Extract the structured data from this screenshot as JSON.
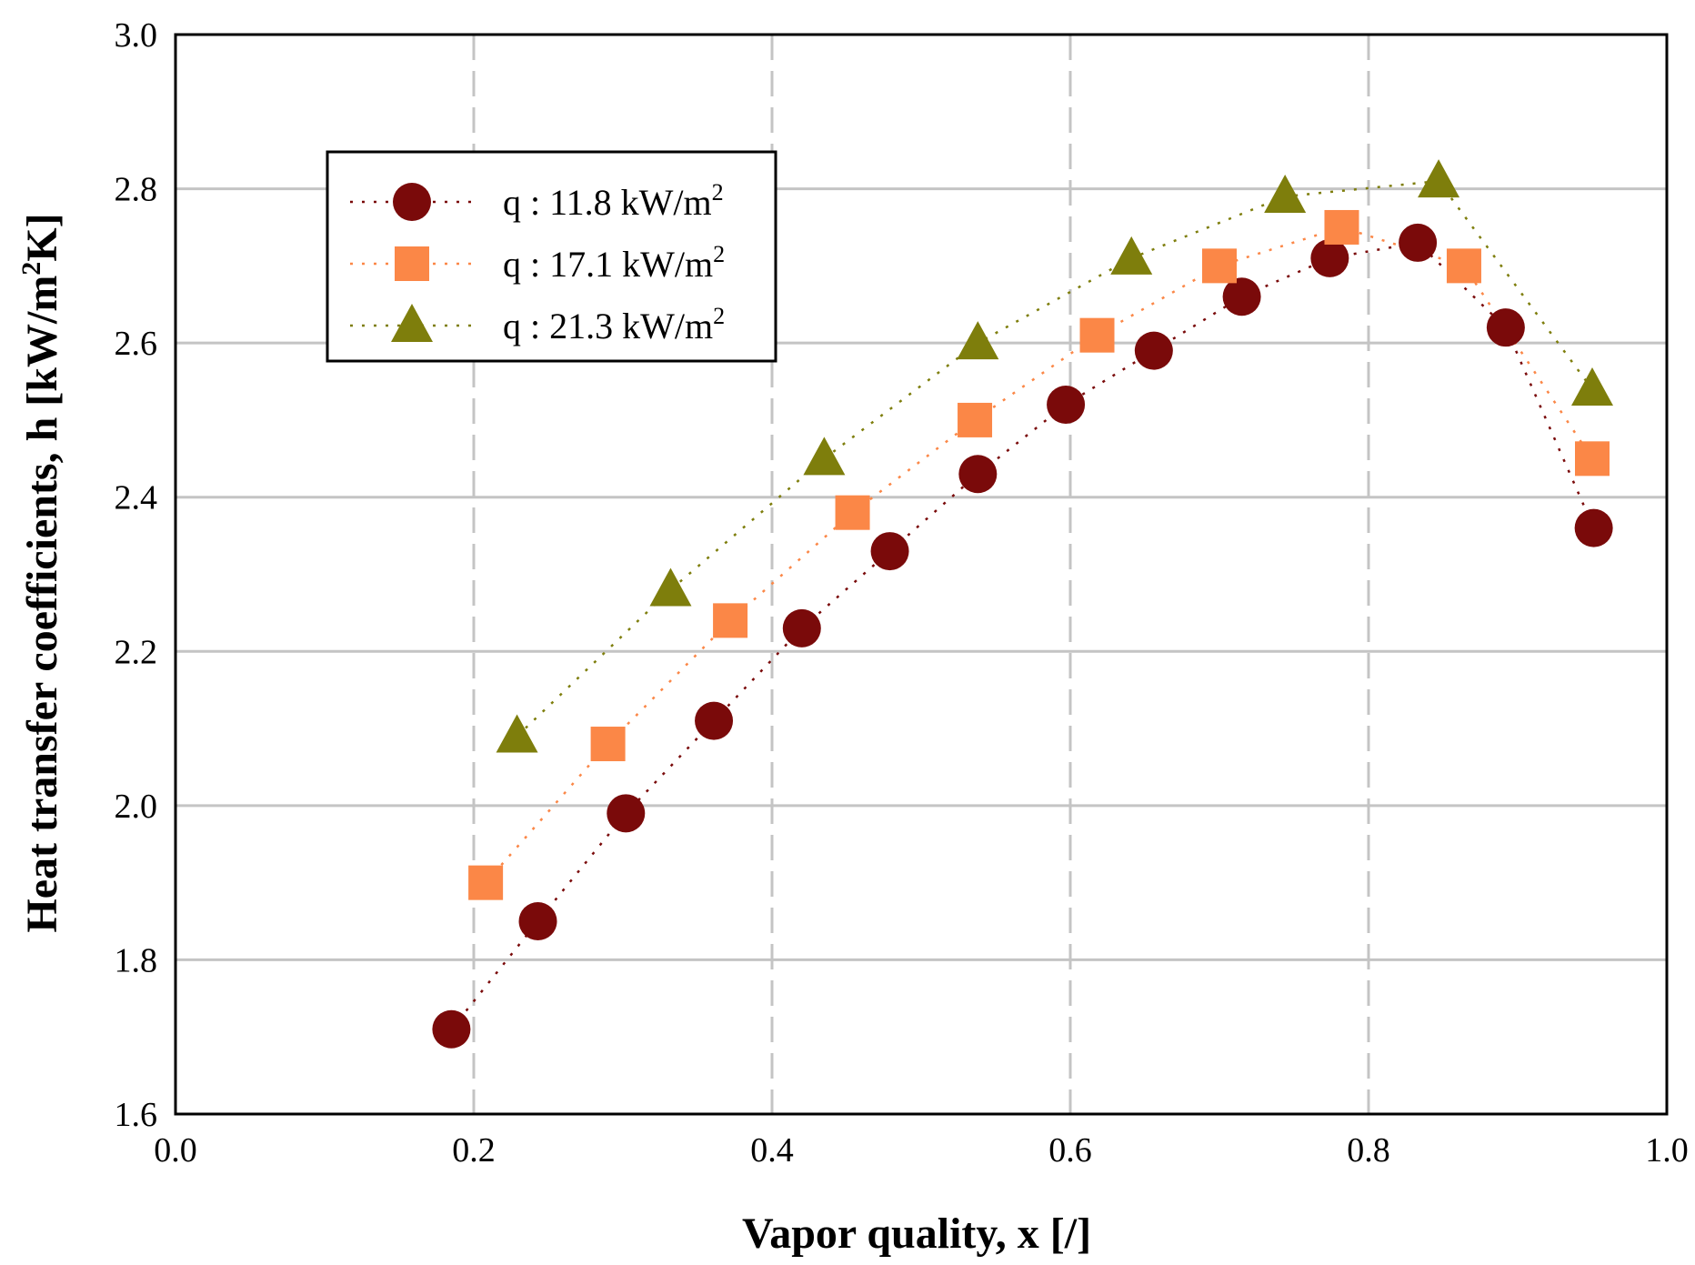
{
  "chart_data": {
    "type": "scatter",
    "xlabel": "Vapor quality, x [/]",
    "ylabel_parts": [
      "Heat transfer coefficients, h [kW/m",
      "2",
      "K]"
    ],
    "xlim": [
      0.0,
      1.0
    ],
    "ylim": [
      1.6,
      3.0
    ],
    "x_ticks": [
      "0.0",
      "0.2",
      "0.4",
      "0.6",
      "0.8",
      "1.0"
    ],
    "y_ticks": [
      "1.6",
      "1.8",
      "2.0",
      "2.2",
      "2.4",
      "2.6",
      "2.8",
      "3.0"
    ],
    "x_grid": "dashed",
    "y_grid": "solid",
    "legend_position": "upper-left",
    "series": [
      {
        "name": "q : 11.8 kW/m2",
        "label_main": "q : 11.8 kW/m",
        "label_sup": "2",
        "marker": "circle",
        "line": "dotted",
        "color": "#7a0a0a",
        "points": [
          [
            0.185,
            1.71
          ],
          [
            0.243,
            1.85
          ],
          [
            0.302,
            1.99
          ],
          [
            0.361,
            2.11
          ],
          [
            0.42,
            2.23
          ],
          [
            0.479,
            2.33
          ],
          [
            0.538,
            2.43
          ],
          [
            0.597,
            2.52
          ],
          [
            0.656,
            2.59
          ],
          [
            0.715,
            2.66
          ],
          [
            0.774,
            2.71
          ],
          [
            0.833,
            2.73
          ],
          [
            0.892,
            2.62
          ],
          [
            0.951,
            2.36
          ]
        ]
      },
      {
        "name": "q : 17.1  kW/m2",
        "label_main": "q : 17.1  kW/m",
        "label_sup": "2",
        "marker": "square",
        "line": "dotted",
        "color": "#fb8747",
        "points": [
          [
            0.208,
            1.9
          ],
          [
            0.29,
            2.08
          ],
          [
            0.372,
            2.24
          ],
          [
            0.454,
            2.38
          ],
          [
            0.536,
            2.5
          ],
          [
            0.618,
            2.61
          ],
          [
            0.7,
            2.7
          ],
          [
            0.782,
            2.75
          ],
          [
            0.864,
            2.7
          ],
          [
            0.95,
            2.45
          ]
        ]
      },
      {
        "name": "q :  21.3 kW/m2",
        "label_main": "q :  21.3 kW/m",
        "label_sup": "2",
        "marker": "triangle",
        "line": "dotted",
        "color": "#7e7e0c",
        "points": [
          [
            0.229,
            2.09
          ],
          [
            0.332,
            2.28
          ],
          [
            0.435,
            2.45
          ],
          [
            0.538,
            2.6
          ],
          [
            0.641,
            2.71
          ],
          [
            0.744,
            2.79
          ],
          [
            0.847,
            2.81
          ],
          [
            0.95,
            2.54
          ]
        ]
      }
    ]
  }
}
